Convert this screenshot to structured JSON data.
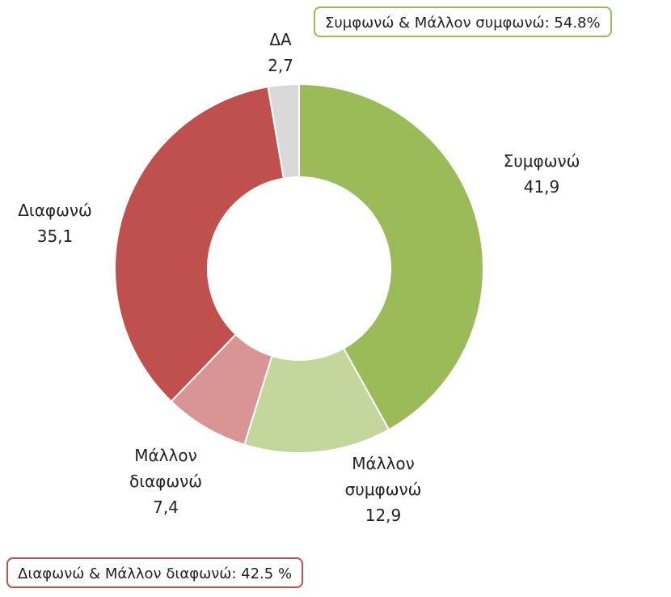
{
  "chart_data": {
    "type": "donut",
    "categories": [
      "Συμφωνώ",
      "Μάλλον συμφωνώ",
      "Μάλλον διαφωνώ",
      "Διαφωνώ",
      "ΔΑ"
    ],
    "values": [
      41.9,
      12.9,
      7.4,
      35.1,
      2.7
    ],
    "value_labels": [
      "41,9",
      "12,9",
      "7,4",
      "35,1",
      "2,7"
    ],
    "colors": [
      "#9bbb59",
      "#c3d69b",
      "#d99594",
      "#c0504d",
      "#d9d9d9"
    ],
    "annotations": [
      "Συμφωνώ & Μάλλον συμφωνώ: 54.8%",
      "Διαφωνώ & Μάλλον διαφωνώ: 42.5 %"
    ]
  }
}
